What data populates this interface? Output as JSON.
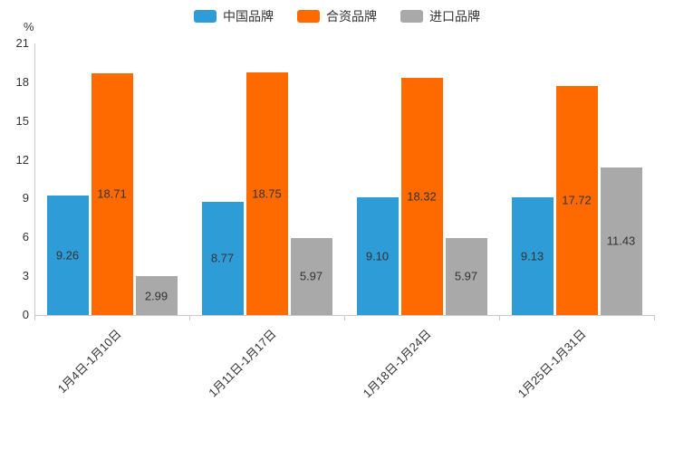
{
  "y_axis": {
    "unit": "%"
  },
  "chart_data": {
    "type": "bar",
    "title": "",
    "xlabel": "",
    "ylabel": "%",
    "ylim": [
      0,
      21
    ],
    "yticks": [
      0,
      3,
      6,
      9,
      12,
      15,
      18,
      21
    ],
    "grid": false,
    "legend_position": "top",
    "value_label_decimals": 2,
    "categories": [
      "1月4日-1月10日",
      "1月11日-1月17日",
      "1月18日-1月24日",
      "1月25日-1月31日"
    ],
    "series": [
      {
        "name": "中国品牌",
        "color": "#2E9CD6",
        "values": [
          9.26,
          8.77,
          9.1,
          9.13
        ]
      },
      {
        "name": "合资品牌",
        "color": "#FF6A00",
        "values": [
          18.71,
          18.75,
          18.32,
          17.72
        ]
      },
      {
        "name": "进口品牌",
        "color": "#A9A9A9",
        "values": [
          2.99,
          5.97,
          5.97,
          11.43
        ]
      }
    ]
  }
}
